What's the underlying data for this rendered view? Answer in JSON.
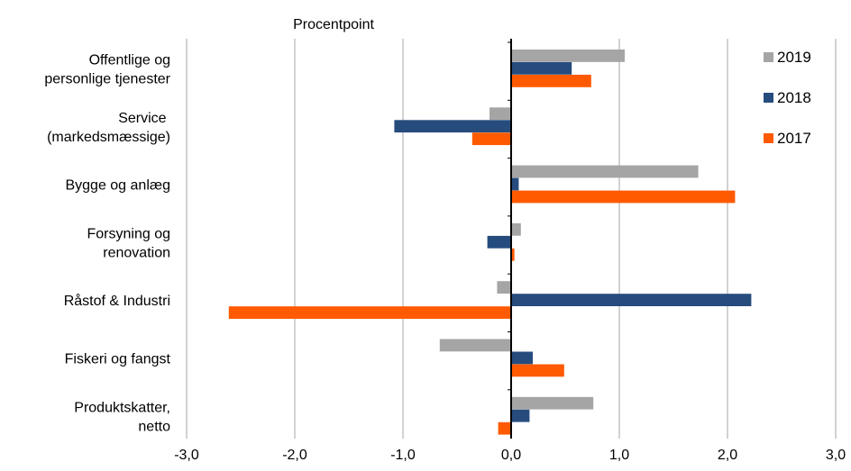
{
  "chart_data": {
    "type": "bar",
    "orientation": "horizontal",
    "title": "",
    "ylabel": "Procentpoint",
    "xlabel": "",
    "xlim": [
      -3.0,
      3.0
    ],
    "x_ticks": [
      -3.0,
      -2.0,
      -1.0,
      0.0,
      1.0,
      2.0,
      3.0
    ],
    "x_tick_labels": [
      "-3,0",
      "-2,0",
      "-1,0",
      "0,0",
      "1,0",
      "2,0",
      "3,0"
    ],
    "grid": "vertical",
    "legend_position": "right",
    "categories": [
      [
        "Offentlige og",
        "personlige tjenester"
      ],
      [
        "Service ",
        "(markedsmæssige)"
      ],
      [
        "Bygge og anlæg"
      ],
      [
        "Forsyning og",
        "renovation"
      ],
      [
        "Råstof & Industri"
      ],
      [
        "Fiskeri og fangst"
      ],
      [
        "Produktskatter,",
        "netto"
      ]
    ],
    "series": [
      {
        "name": "2019",
        "color": "#A5A5A5",
        "values": [
          1.05,
          -0.2,
          1.73,
          0.09,
          -0.13,
          -0.66,
          0.76
        ]
      },
      {
        "name": "2018",
        "color": "#264C7E",
        "values": [
          0.56,
          -1.08,
          0.07,
          -0.22,
          2.22,
          0.2,
          0.17
        ]
      },
      {
        "name": "2017",
        "color": "#FF5A00",
        "values": [
          0.74,
          -0.36,
          2.07,
          0.03,
          -2.61,
          0.49,
          -0.12
        ]
      }
    ]
  }
}
